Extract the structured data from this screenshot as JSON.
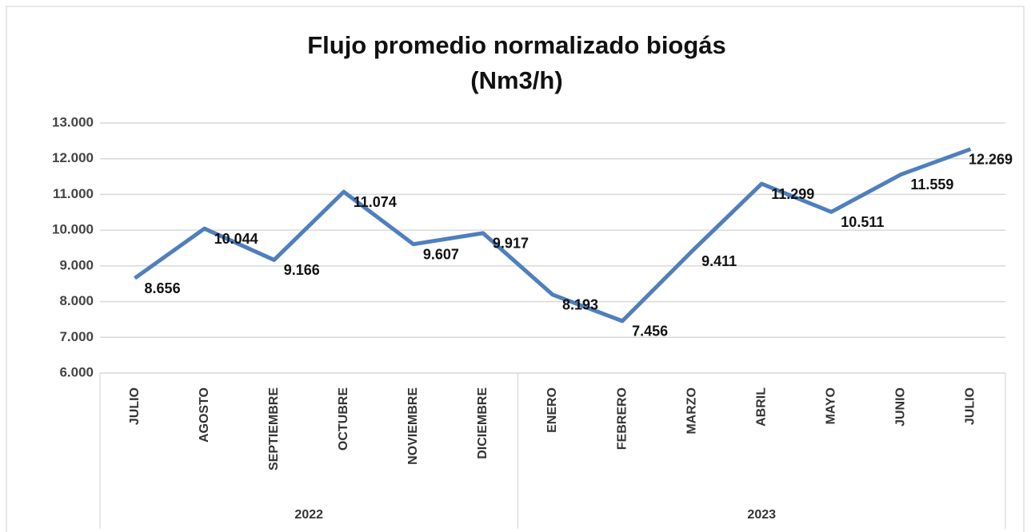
{
  "chart_data": {
    "type": "line",
    "title": "Flujo promedio normalizado biogás",
    "subtitle": "(Nm3/h)",
    "groups": [
      {
        "label": "2022",
        "categories": [
          "JULIO",
          "AGOSTO",
          "SEPTIEMBRE",
          "OCTUBRE",
          "NOVIEMBRE",
          "DICIEMBRE"
        ]
      },
      {
        "label": "2023",
        "categories": [
          "ENERO",
          "FEBRERO",
          "MARZO",
          "ABRIL",
          "MAYO",
          "JUNIO",
          "JULIO"
        ]
      }
    ],
    "series": [
      {
        "color": "#4f7fbd",
        "values": [
          8656,
          10044,
          9166,
          11074,
          9607,
          9917,
          8193,
          7456,
          9411,
          11299,
          10511,
          11559,
          12269
        ],
        "value_labels": [
          "8.656",
          "10.044",
          "9.166",
          "11.074",
          "9.607",
          "9.917",
          "8.193",
          "7.456",
          "9.411",
          "11.299",
          "10.511",
          "11.559",
          "12.269"
        ]
      }
    ],
    "ylim": [
      6000,
      13000
    ],
    "yticks": [
      {
        "value": 6000,
        "label": "6.000"
      },
      {
        "value": 7000,
        "label": "7.000"
      },
      {
        "value": 8000,
        "label": "8.000"
      },
      {
        "value": 9000,
        "label": "9.000"
      },
      {
        "value": 10000,
        "label": "10.000"
      },
      {
        "value": 11000,
        "label": "11.000"
      },
      {
        "value": 12000,
        "label": "12.000"
      },
      {
        "value": 13000,
        "label": "13.000"
      }
    ],
    "grid": true
  }
}
